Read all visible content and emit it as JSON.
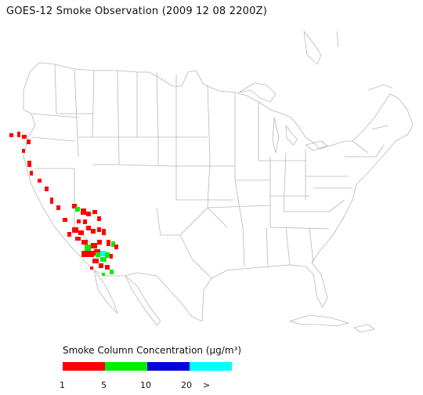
{
  "title": "GOES-12 Smoke Observation (2009 12 08  2200Z)",
  "legend": {
    "title": "Smoke Column Concentration (μg/m³)",
    "segments": [
      {
        "from": "1",
        "to": "5",
        "color": "#ff0000"
      },
      {
        "from": "5",
        "to": "10",
        "color": "#00ee00"
      },
      {
        "from": "10",
        "to": "20",
        "color": "#0000dd"
      },
      {
        "from": "20",
        "to": ">",
        "color": "#00ffff"
      }
    ],
    "ticks": [
      "1",
      "5",
      "10",
      "20",
      ">"
    ]
  },
  "colors": {
    "boundary": "#b8b8b8",
    "low": "#ff0000",
    "mid": "#00ee00",
    "high": "#0000dd",
    "very_high": "#00ffff"
  }
}
